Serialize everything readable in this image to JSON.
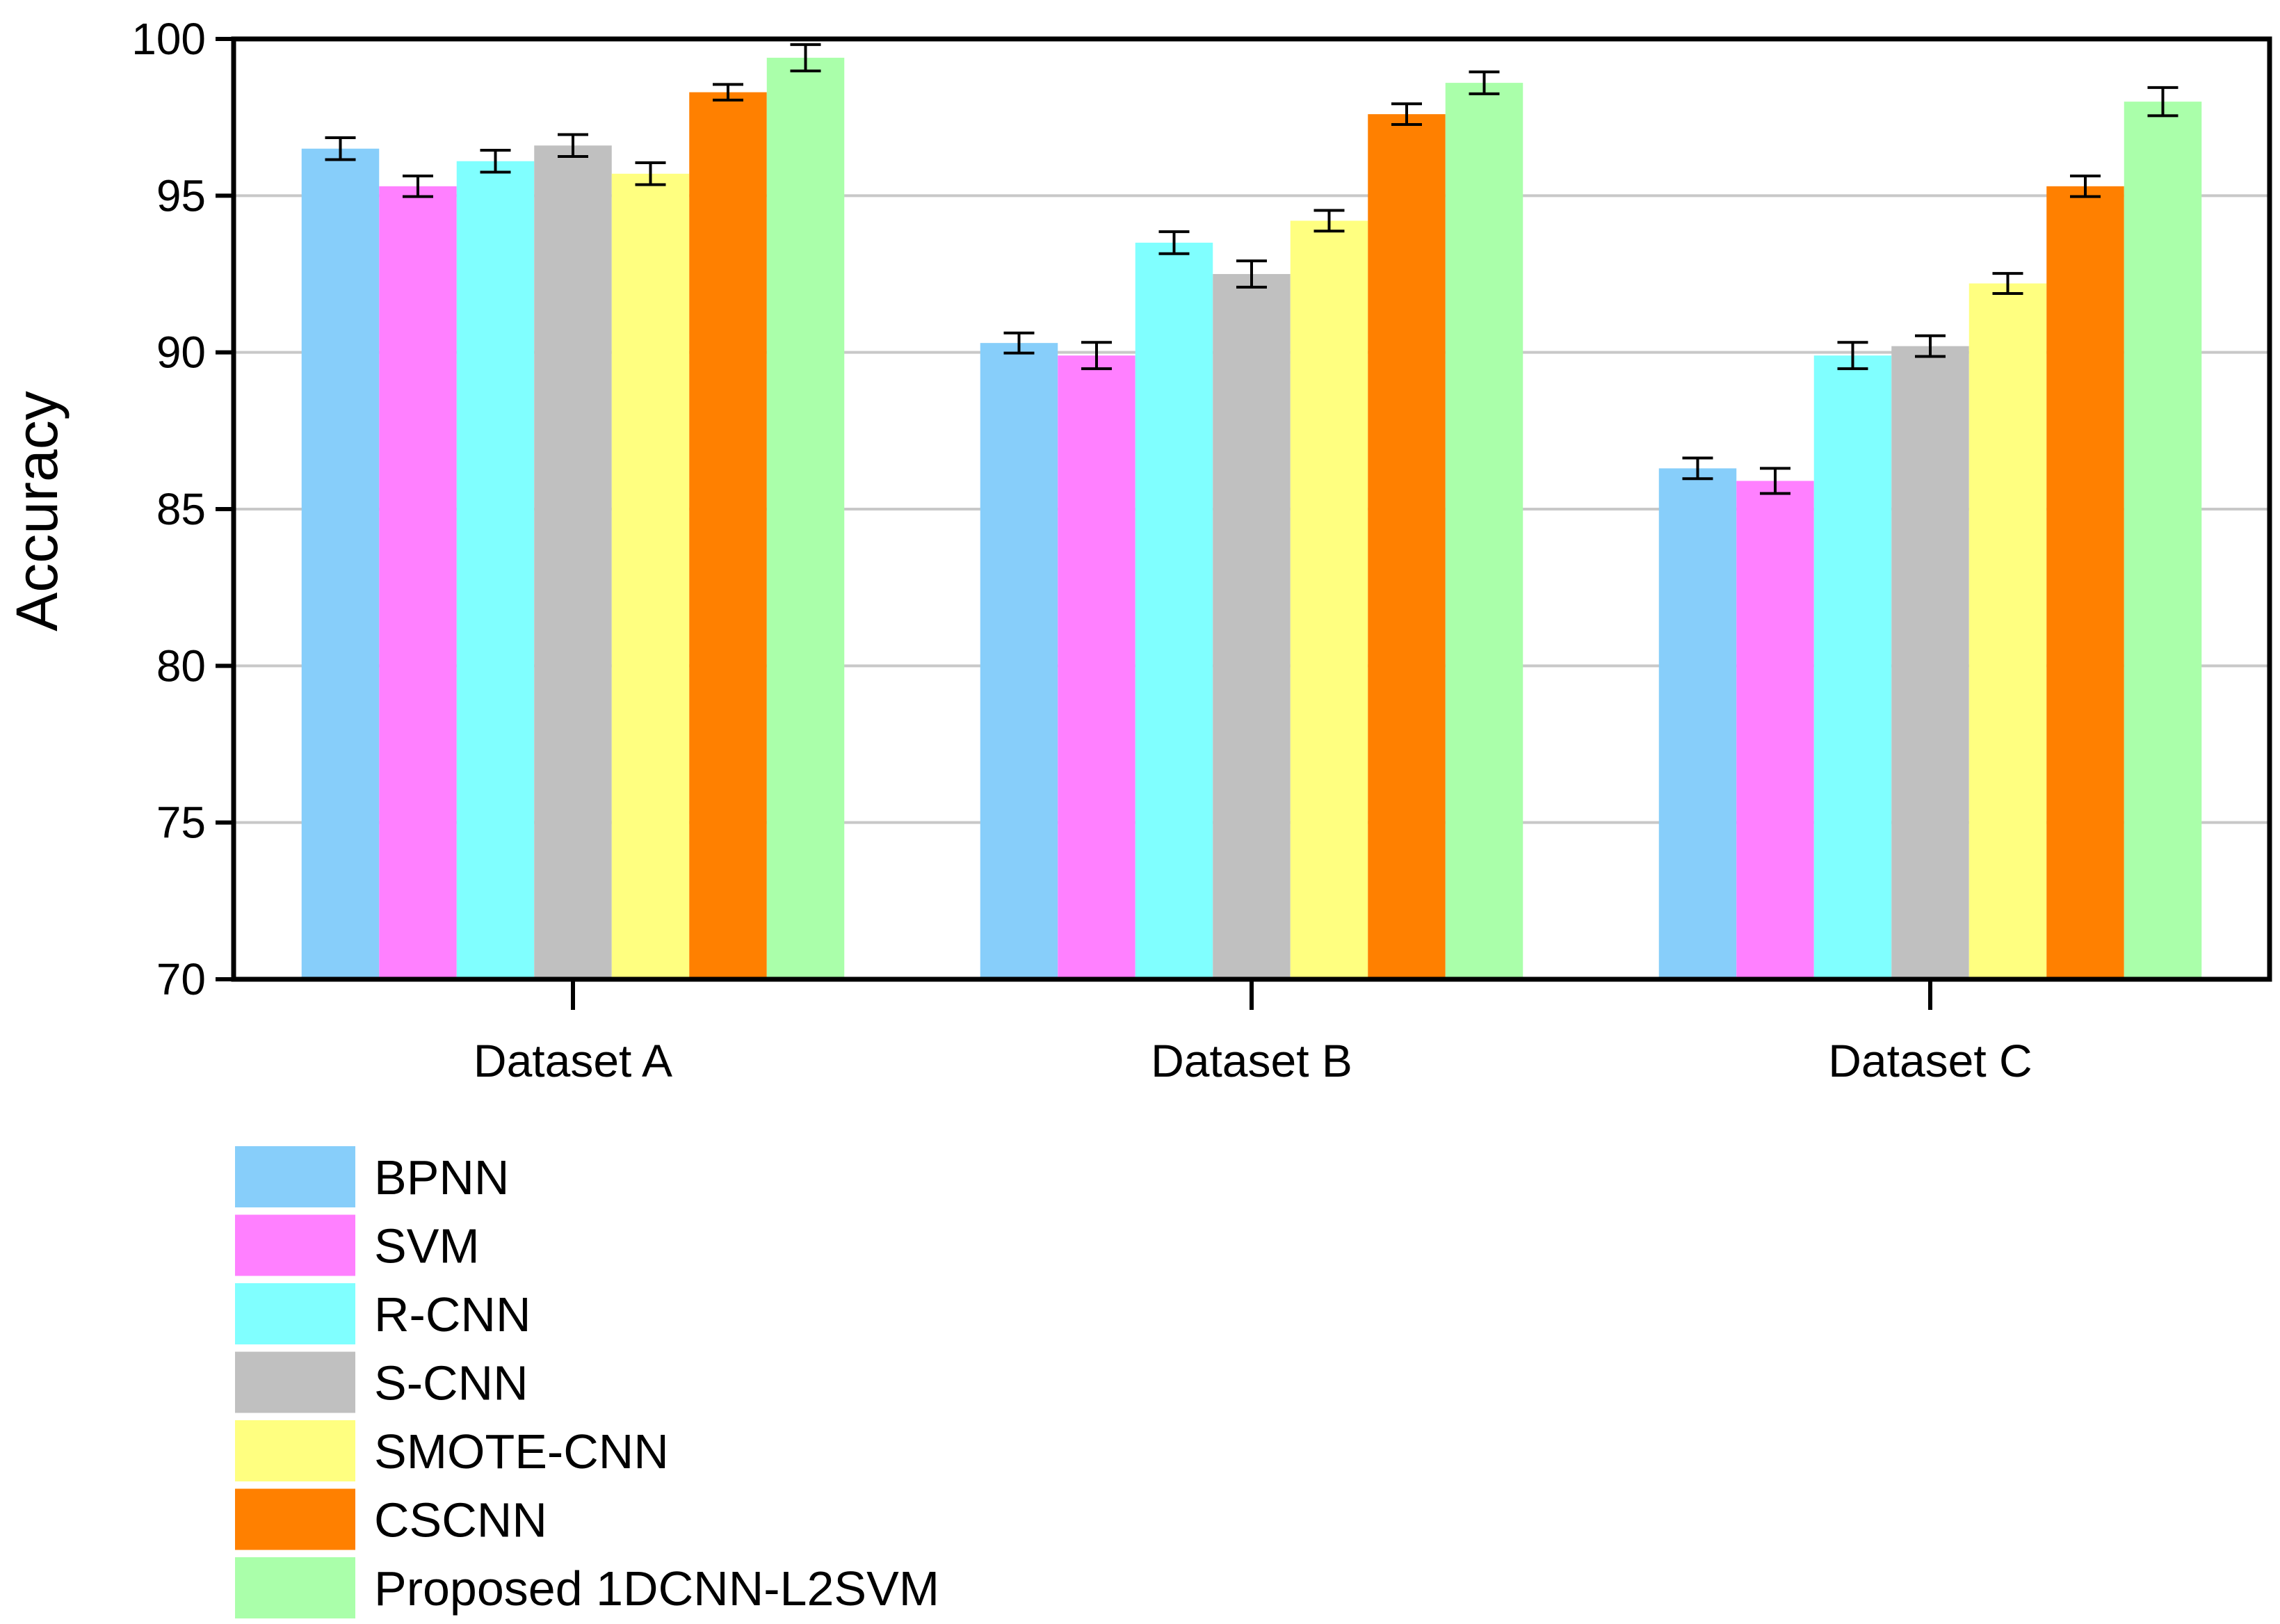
{
  "chart_data": {
    "type": "bar",
    "title": "",
    "xlabel": "",
    "ylabel": "Accuracy",
    "ylim": [
      70,
      100
    ],
    "yticks": [
      70,
      75,
      80,
      85,
      90,
      95,
      100
    ],
    "grid": true,
    "legend_position": "bottom-left",
    "categories": [
      "Dataset A",
      "Dataset B",
      "Dataset C"
    ],
    "series": [
      {
        "name": "BPNN",
        "color": "#87CEFA",
        "values": [
          96.5,
          90.3,
          86.3
        ],
        "errors": [
          0.35,
          0.32,
          0.33
        ]
      },
      {
        "name": "SVM",
        "color": "#FF80FF",
        "values": [
          95.3,
          89.9,
          85.9
        ],
        "errors": [
          0.33,
          0.42,
          0.4
        ]
      },
      {
        "name": "R-CNN",
        "color": "#80FFFF",
        "values": [
          96.1,
          93.5,
          89.9
        ],
        "errors": [
          0.35,
          0.35,
          0.42
        ]
      },
      {
        "name": "S-CNN",
        "color": "#C0C0C0",
        "values": [
          96.6,
          92.5,
          90.2
        ],
        "errors": [
          0.35,
          0.42,
          0.33
        ]
      },
      {
        "name": "SMOTE-CNN",
        "color": "#FFFF80",
        "values": [
          95.7,
          94.2,
          92.2
        ],
        "errors": [
          0.35,
          0.33,
          0.32
        ]
      },
      {
        "name": "CSCNN",
        "color": "#FF8000",
        "values": [
          98.3,
          97.6,
          95.3
        ],
        "errors": [
          0.25,
          0.33,
          0.33
        ]
      },
      {
        "name": "Proposed 1DCNN-L2SVM",
        "color": "#AAFFAA",
        "values": [
          99.4,
          98.6,
          98.0
        ],
        "errors": [
          0.42,
          0.35,
          0.45
        ]
      }
    ]
  }
}
